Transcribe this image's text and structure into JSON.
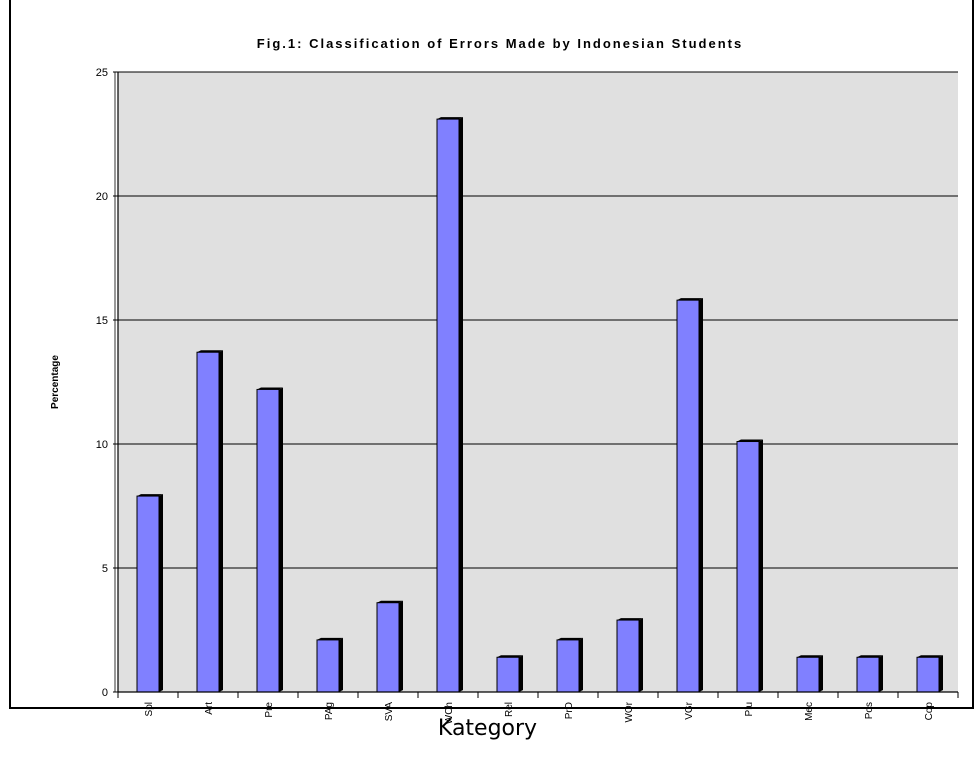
{
  "chart_data": {
    "type": "bar",
    "title": "Fig.1: Classification of Errors Made by Indonesian Students",
    "ylabel": "Percentage",
    "xlabel": "Kategory",
    "categories": [
      "Spl",
      "Art",
      "Pre",
      "PAg",
      "SVA",
      "WCh",
      "Rel",
      "PrD",
      "WOr",
      "VGr",
      "Plu",
      "Mec",
      "Pos",
      "Cop"
    ],
    "values": [
      7.9,
      13.7,
      12.2,
      2.1,
      3.6,
      23.1,
      1.4,
      2.1,
      2.9,
      15.8,
      10.1,
      1.4,
      1.4,
      1.4
    ],
    "ylim": [
      0,
      25
    ],
    "yticks": [
      "0",
      "5",
      "10",
      "15",
      "20",
      "25"
    ],
    "grid": true,
    "legend": "none",
    "colors": {
      "bar": "#8080ff",
      "bar_shadow": "#000000",
      "plot_background": "#e0e0e0",
      "gridline": "#000000"
    }
  }
}
